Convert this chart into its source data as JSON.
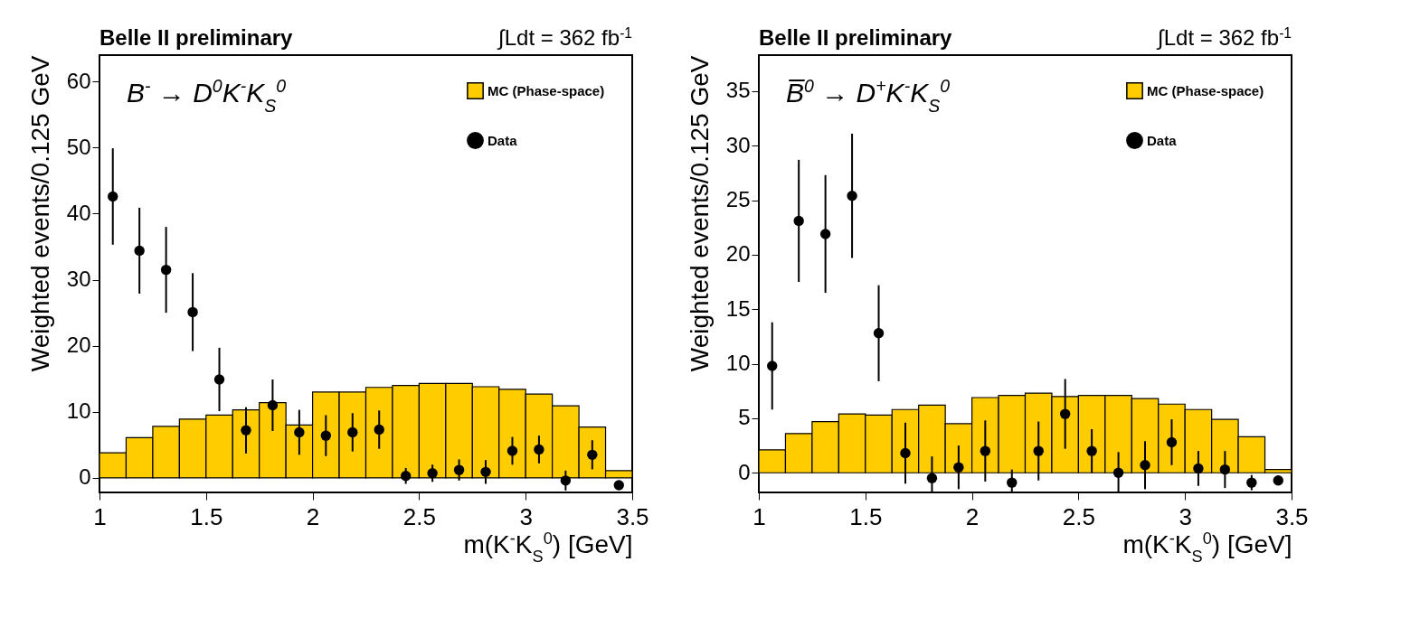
{
  "chart_data": [
    {
      "type": "histogram",
      "title": "Belle II preliminary",
      "subtitle": "∫Ldt = 362 fb$^{-1}$",
      "annotations": [
        "B$^{-}$ → D$^{0}$K$^{-}$K$_{S}$$^{0}$"
      ],
      "xlabel": "m(K$^{-}$K$_{S}$$^{0}$) [GeV]",
      "ylabel": "Weighted events/0.125 GeV",
      "bins": [
        1,
        1.125,
        1.25,
        1.375,
        1.5,
        1.625,
        1.75,
        1.875,
        2,
        2.125,
        2.25,
        2.375,
        2.5,
        2.625,
        2.75,
        2.875,
        3,
        3.125,
        3.25,
        3.375,
        3.5
      ],
      "series": [
        {
          "name": "MC (Phase-space)",
          "color": "#ffcc00",
          "values": [
            3.8,
            6.1,
            7.8,
            8.9,
            9.5,
            10.3,
            11.4,
            8.0,
            13.0,
            13.0,
            13.7,
            14.0,
            14.3,
            14.3,
            13.8,
            13.4,
            12.7,
            10.9,
            7.7,
            1.1
          ]
        },
        {
          "name": "Data",
          "type": "scatter",
          "color": "#000000",
          "x": [
            1.0625,
            1.1875,
            1.3125,
            1.4375,
            1.5625,
            1.6875,
            1.8125,
            1.9375,
            2.0625,
            2.1875,
            2.3125,
            2.4375,
            2.5625,
            2.6875,
            2.8125,
            2.9375,
            3.0625,
            3.1875,
            3.3125,
            3.4375
          ],
          "values": [
            42.6,
            34.4,
            31.5,
            25.1,
            14.9,
            7.2,
            11.0,
            6.9,
            6.4,
            6.9,
            7.3,
            0.3,
            0.7,
            1.2,
            0.9,
            4.1,
            4.3,
            -0.4,
            3.5,
            -1.1
          ],
          "errors": [
            7.3,
            6.5,
            6.5,
            5.9,
            4.8,
            3.5,
            3.9,
            3.4,
            3.1,
            2.9,
            2.9,
            1.2,
            1.3,
            1.6,
            1.8,
            2.1,
            2.1,
            1.5,
            2.2,
            null
          ]
        }
      ],
      "xlim": [
        1,
        3.5
      ],
      "xticks": [
        1,
        1.5,
        2,
        2.5,
        3,
        3.5
      ],
      "ylim": [
        -2.2,
        64
      ],
      "yticks": [
        0,
        10,
        20,
        30,
        40,
        50,
        60
      ],
      "legend": "top right",
      "marker": "circle"
    },
    {
      "type": "histogram",
      "title": "Belle II preliminary",
      "subtitle": "∫Ldt = 362 fb$^{-1}$",
      "annotations": [
        "B̅$^{0}$ → D$^{+}$K$^{-}$K$_{S}$$^{0}$"
      ],
      "xlabel": "m(K$^{-}$K$_{S}$$^{0}$) [GeV]",
      "ylabel": "Weighted events/0.125 GeV",
      "bins": [
        1,
        1.125,
        1.25,
        1.375,
        1.5,
        1.625,
        1.75,
        1.875,
        2,
        2.125,
        2.25,
        2.375,
        2.5,
        2.625,
        2.75,
        2.875,
        3,
        3.125,
        3.25,
        3.375,
        3.5
      ],
      "series": [
        {
          "name": "MC (Phase-space)",
          "color": "#ffcc00",
          "values": [
            2.1,
            3.6,
            4.7,
            5.4,
            5.3,
            5.8,
            6.2,
            4.5,
            6.9,
            7.1,
            7.3,
            7.0,
            7.1,
            7.1,
            6.8,
            6.3,
            5.8,
            4.9,
            3.3,
            0.3
          ]
        },
        {
          "name": "Data",
          "type": "scatter",
          "color": "#000000",
          "x": [
            1.0625,
            1.1875,
            1.3125,
            1.4375,
            1.5625,
            1.6875,
            1.8125,
            1.9375,
            2.0625,
            2.1875,
            2.3125,
            2.4375,
            2.5625,
            2.6875,
            2.8125,
            2.9375,
            3.0625,
            3.1875,
            3.3125,
            3.4375
          ],
          "values": [
            9.8,
            23.1,
            21.9,
            25.4,
            12.8,
            1.8,
            -0.5,
            0.5,
            2.0,
            -0.9,
            2.0,
            5.4,
            2.0,
            0.0,
            0.7,
            2.8,
            0.4,
            0.3,
            -0.9,
            -0.7
          ],
          "errors": [
            4.0,
            5.6,
            5.4,
            5.7,
            4.4,
            2.8,
            [
              -1.8,
              1.5
            ],
            2.0,
            2.8,
            [
              -1.8,
              0.3
            ],
            2.7,
            3.2,
            2.0,
            [
              -1.8,
              1.9
            ],
            2.2,
            2.1,
            1.6,
            1.7,
            0.7,
            null
          ]
        }
      ],
      "xlim": [
        1,
        3.5
      ],
      "xticks": [
        1,
        1.5,
        2,
        2.5,
        3,
        3.5
      ],
      "ylim": [
        -1.8,
        38.3
      ],
      "yticks": [
        0,
        5,
        10,
        15,
        20,
        25,
        30,
        35
      ],
      "legend": "top right",
      "marker": "circle"
    }
  ]
}
